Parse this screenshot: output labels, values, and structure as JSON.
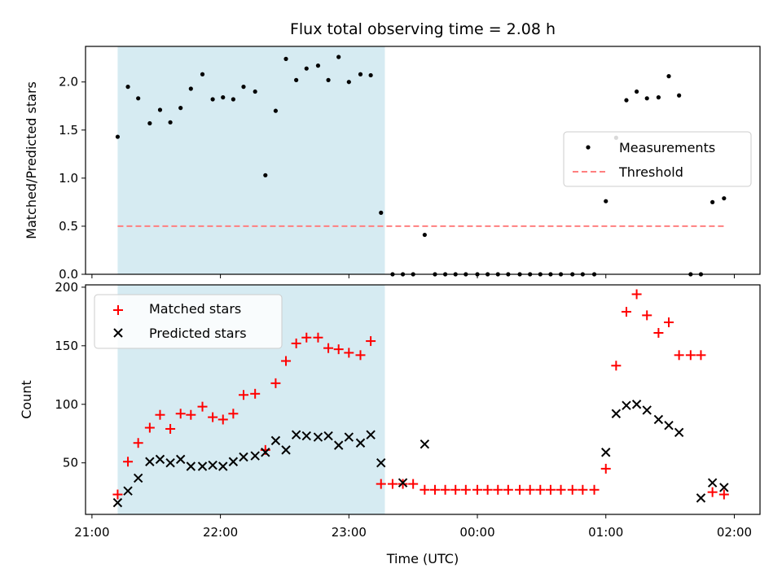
{
  "chart_data": {
    "type": "scatter",
    "title": "Flux total observing time = 2.08 h",
    "xlabel": "Time (UTC)",
    "x_unit": "hours after 21:00 UTC",
    "xlim": [
      -0.05,
      5.2
    ],
    "x_ticks": [
      {
        "value": 0,
        "label": "21:00"
      },
      {
        "value": 1,
        "label": "22:00"
      },
      {
        "value": 2,
        "label": "23:00"
      },
      {
        "value": 3,
        "label": "00:00"
      },
      {
        "value": 4,
        "label": "01:00"
      },
      {
        "value": 5,
        "label": "02:00"
      }
    ],
    "shaded_span": {
      "x_start": 0.2,
      "x_end": 2.28,
      "color": "#add8e6"
    },
    "top": {
      "ylabel": "Matched/Predicted stars",
      "ylim": [
        0,
        2.37
      ],
      "y_ticks": [
        {
          "value": 0,
          "label": "0.0"
        },
        {
          "value": 0.5,
          "label": "0.5"
        },
        {
          "value": 1.0,
          "label": "1.0"
        },
        {
          "value": 1.5,
          "label": "1.5"
        },
        {
          "value": 2.0,
          "label": "2.0"
        }
      ],
      "legend": {
        "location": "center right",
        "entries": [
          "Measurements",
          "Threshold"
        ]
      },
      "series": [
        {
          "name": "Measurements",
          "marker": "dot",
          "color": "#000000",
          "x": [
            0.2,
            0.28,
            0.36,
            0.45,
            0.53,
            0.61,
            0.69,
            0.77,
            0.86,
            0.94,
            1.02,
            1.1,
            1.18,
            1.27,
            1.35,
            1.43,
            1.51,
            1.59,
            1.67,
            1.76,
            1.84,
            1.92,
            2.0,
            2.09,
            2.17,
            2.25,
            2.34,
            2.42,
            2.5,
            2.59,
            2.67,
            2.75,
            2.83,
            2.91,
            3.0,
            3.08,
            3.16,
            3.24,
            3.33,
            3.41,
            3.49,
            3.57,
            3.65,
            3.74,
            3.82,
            3.91,
            4.0,
            4.08,
            4.16,
            4.24,
            4.32,
            4.41,
            4.49,
            4.57,
            4.66,
            4.74,
            4.83,
            4.92
          ],
          "y": [
            1.43,
            1.95,
            1.83,
            1.57,
            1.71,
            1.58,
            1.73,
            1.93,
            2.08,
            1.82,
            1.84,
            1.82,
            1.95,
            1.9,
            1.03,
            1.7,
            2.24,
            2.02,
            2.14,
            2.17,
            2.02,
            2.26,
            2.0,
            2.08,
            2.07,
            0.64,
            0.0,
            0.0,
            0.0,
            0.41,
            0.0,
            0.0,
            0.0,
            0.0,
            0.0,
            0.0,
            0.0,
            0.0,
            0.0,
            0.0,
            0.0,
            0.0,
            0.0,
            0.0,
            0.0,
            0.0,
            0.76,
            1.42,
            1.81,
            1.9,
            1.83,
            1.84,
            2.06,
            1.86,
            0.0,
            0.0,
            0.75,
            0.79
          ]
        },
        {
          "name": "Threshold",
          "style": "dashed",
          "color": "#ff7f7f",
          "x": [
            0.2,
            4.92
          ],
          "y": [
            0.5,
            0.5
          ]
        }
      ]
    },
    "bottom": {
      "ylabel": "Count",
      "ylim": [
        6,
        202
      ],
      "y_ticks": [
        {
          "value": 50,
          "label": "50"
        },
        {
          "value": 100,
          "label": "100"
        },
        {
          "value": 150,
          "label": "150"
        },
        {
          "value": 200,
          "label": "200"
        }
      ],
      "legend": {
        "location": "upper left",
        "entries": [
          "Matched stars",
          "Predicted stars"
        ]
      },
      "series": [
        {
          "name": "Matched stars",
          "marker": "plus",
          "color": "#ff0000",
          "x": [
            0.2,
            0.28,
            0.36,
            0.45,
            0.53,
            0.61,
            0.69,
            0.77,
            0.86,
            0.94,
            1.02,
            1.1,
            1.18,
            1.27,
            1.35,
            1.43,
            1.51,
            1.59,
            1.67,
            1.76,
            1.84,
            1.92,
            2.0,
            2.09,
            2.17,
            2.25,
            2.34,
            2.42,
            2.5,
            2.59,
            2.67,
            2.75,
            2.83,
            2.91,
            3.0,
            3.08,
            3.16,
            3.24,
            3.33,
            3.41,
            3.49,
            3.57,
            3.65,
            3.74,
            3.82,
            3.91,
            4.0,
            4.08,
            4.16,
            4.24,
            4.32,
            4.41,
            4.49,
            4.57,
            4.66,
            4.74,
            4.83,
            4.92
          ],
          "y": [
            23,
            51,
            67,
            80,
            91,
            79,
            92,
            91,
            98,
            89,
            87,
            92,
            108,
            109,
            61,
            118,
            137,
            152,
            157,
            157,
            148,
            147,
            144,
            142,
            154,
            32,
            32,
            32,
            32,
            27,
            27,
            27,
            27,
            27,
            27,
            27,
            27,
            27,
            27,
            27,
            27,
            27,
            27,
            27,
            27,
            27,
            45,
            133,
            179,
            194,
            176,
            161,
            170,
            142,
            142,
            142,
            25,
            23
          ]
        },
        {
          "name": "Predicted stars",
          "marker": "x",
          "color": "#000000",
          "x": [
            0.2,
            0.28,
            0.36,
            0.45,
            0.53,
            0.61,
            0.69,
            0.77,
            0.86,
            0.94,
            1.02,
            1.1,
            1.18,
            1.27,
            1.35,
            1.43,
            1.51,
            1.59,
            1.67,
            1.76,
            1.84,
            1.92,
            2.0,
            2.09,
            2.17,
            2.25,
            2.42,
            2.59,
            4.0,
            4.08,
            4.16,
            4.24,
            4.32,
            4.41,
            4.49,
            4.57,
            4.74,
            4.83,
            4.92
          ],
          "y": [
            16,
            26,
            37,
            51,
            53,
            50,
            53,
            47,
            47,
            48,
            47,
            51,
            55,
            56,
            59,
            69,
            61,
            74,
            73,
            72,
            73,
            65,
            72,
            67,
            74,
            50,
            33,
            66,
            59,
            92,
            99,
            100,
            95,
            87,
            82,
            76,
            20,
            33,
            29
          ]
        }
      ]
    }
  }
}
